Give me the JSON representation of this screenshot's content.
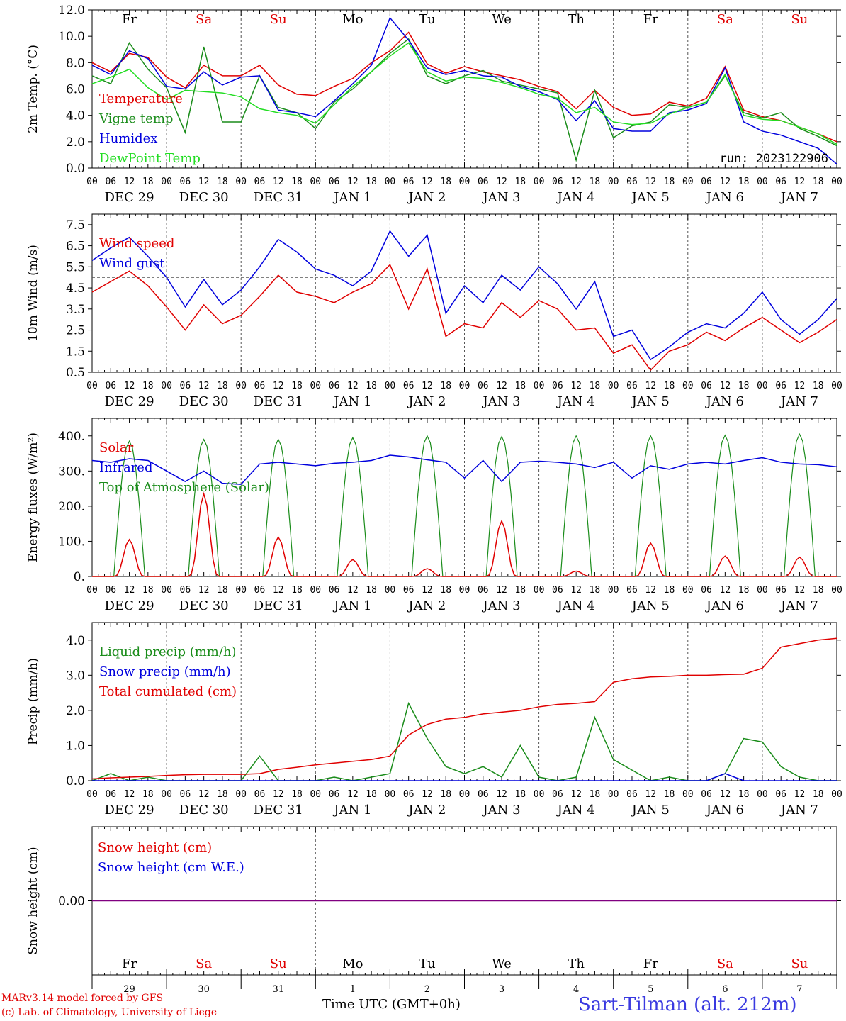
{
  "footer": {
    "model": "MARv3.14 model forced by GFS",
    "credit": "(c) Lab. of Climatology, University of Liege",
    "xlabel": "Time UTC (GMT+0h)",
    "station": "Sart-Tilman (alt. 212m)"
  },
  "colors": {
    "red": "#e00000",
    "green": "#1a8c1a",
    "blue": "#0000dd",
    "lightgreen": "#22dd22",
    "purple": "#800080"
  },
  "axis": {
    "hour_ticks": [
      "00",
      "06",
      "12",
      "18"
    ],
    "dates": [
      "DEC 29",
      "DEC 30",
      "DEC 31",
      "JAN  1",
      "JAN  2",
      "JAN  3",
      "JAN  4",
      "JAN  5",
      "JAN  6",
      "JAN  7"
    ],
    "weekdays": [
      "Fr",
      "Sa",
      "Su",
      "Mo",
      "Tu",
      "We",
      "Th",
      "Fr",
      "Sa",
      "Su"
    ],
    "weekend": [
      false,
      true,
      true,
      false,
      false,
      false,
      false,
      false,
      true,
      true
    ],
    "day_numbers": [
      "29",
      "30",
      "31",
      "1",
      "2",
      "3",
      "4",
      "5",
      "6",
      "7"
    ]
  },
  "chart_data": [
    {
      "type": "line",
      "ylabel": "2m Temp. (°C)",
      "ylim": [
        0,
        12
      ],
      "yticks": [
        "0.0",
        "2.0",
        "4.0",
        "6.0",
        "8.0",
        "10.0",
        "12.0"
      ],
      "annotation": "run: 2023122906",
      "x_days": [
        0,
        0.25,
        0.5,
        0.75,
        1,
        1.25,
        1.5,
        1.75,
        2,
        2.25,
        2.5,
        2.75,
        3,
        3.25,
        3.5,
        3.75,
        4,
        4.25,
        4.5,
        4.75,
        5,
        5.25,
        5.5,
        5.75,
        6,
        6.25,
        6.5,
        6.75,
        7,
        7.25,
        7.5,
        7.75,
        8,
        8.25,
        8.5,
        8.75,
        9,
        9.25,
        9.5,
        9.75,
        10
      ],
      "series": [
        {
          "name": "Temperature",
          "color": "red",
          "values": [
            8.0,
            7.3,
            8.7,
            8.4,
            6.9,
            6.1,
            7.8,
            7.0,
            7.0,
            7.8,
            6.3,
            5.6,
            5.5,
            6.2,
            6.8,
            8.0,
            8.9,
            10.3,
            7.9,
            7.2,
            7.7,
            7.3,
            7.0,
            6.7,
            6.2,
            5.8,
            4.5,
            5.9,
            4.6,
            4.0,
            4.1,
            5.0,
            4.7,
            5.3,
            7.7,
            4.4,
            3.9,
            3.6,
            3.1,
            2.6,
            2.0
          ]
        },
        {
          "name": "Vigne temp",
          "color": "green",
          "values": [
            7.0,
            6.4,
            9.5,
            7.5,
            6.1,
            2.7,
            9.2,
            3.5,
            3.5,
            7.0,
            4.6,
            4.2,
            3.0,
            5.0,
            6.0,
            7.3,
            8.7,
            9.8,
            7.0,
            6.4,
            7.0,
            7.4,
            6.6,
            6.3,
            6.0,
            5.7,
            0.6,
            5.9,
            2.3,
            3.2,
            3.5,
            4.8,
            4.6,
            5.0,
            7.0,
            4.2,
            3.8,
            4.2,
            3.0,
            2.4,
            1.7
          ]
        },
        {
          "name": "Humidex",
          "color": "blue",
          "values": [
            7.8,
            7.1,
            8.9,
            8.3,
            6.2,
            6.0,
            7.3,
            6.3,
            6.9,
            7.0,
            4.4,
            4.2,
            3.9,
            5.1,
            6.4,
            7.8,
            11.4,
            9.7,
            7.6,
            7.1,
            7.4,
            7.0,
            6.9,
            6.2,
            5.8,
            5.2,
            3.6,
            5.1,
            3.0,
            2.8,
            2.8,
            4.2,
            4.4,
            4.9,
            7.6,
            3.5,
            2.8,
            2.5,
            2.0,
            1.5,
            0.3
          ]
        },
        {
          "name": "DewPoint Temp",
          "color": "lightgreen",
          "values": [
            6.4,
            6.9,
            7.5,
            6.1,
            5.2,
            5.9,
            5.8,
            5.7,
            5.4,
            4.5,
            4.2,
            4.0,
            3.4,
            4.8,
            6.2,
            7.3,
            8.5,
            9.5,
            7.3,
            6.6,
            6.9,
            6.8,
            6.5,
            6.1,
            5.6,
            5.3,
            4.2,
            4.6,
            3.5,
            3.3,
            3.4,
            4.1,
            4.6,
            5.0,
            7.1,
            4.0,
            3.7,
            3.6,
            3.1,
            2.6,
            1.8
          ]
        }
      ]
    },
    {
      "type": "line",
      "ylabel": "10m Wind (m/s)",
      "ylim": [
        0.5,
        8.0
      ],
      "yticks": [
        "0.5",
        "1.5",
        "2.5",
        "3.5",
        "4.5",
        "5.5",
        "6.5",
        "7.5"
      ],
      "reference_line": 5.0,
      "x_days": [
        0,
        0.25,
        0.5,
        0.75,
        1,
        1.25,
        1.5,
        1.75,
        2,
        2.25,
        2.5,
        2.75,
        3,
        3.25,
        3.5,
        3.75,
        4,
        4.25,
        4.5,
        4.75,
        5,
        5.25,
        5.5,
        5.75,
        6,
        6.25,
        6.5,
        6.75,
        7,
        7.25,
        7.5,
        7.75,
        8,
        8.25,
        8.5,
        8.75,
        9,
        9.25,
        9.5,
        9.75,
        10
      ],
      "series": [
        {
          "name": "Wind speed",
          "color": "red",
          "values": [
            4.3,
            4.8,
            5.3,
            4.6,
            3.6,
            2.5,
            3.7,
            2.8,
            3.2,
            4.1,
            5.1,
            4.3,
            4.1,
            3.8,
            4.3,
            4.7,
            5.6,
            3.5,
            5.4,
            2.2,
            2.8,
            2.6,
            3.8,
            3.1,
            3.9,
            3.5,
            2.5,
            2.6,
            1.4,
            1.8,
            0.6,
            1.5,
            1.8,
            2.4,
            2.0,
            2.6,
            3.1,
            2.5,
            1.9,
            2.4,
            3.0
          ]
        },
        {
          "name": "Wind gust",
          "color": "blue",
          "values": [
            5.8,
            6.4,
            6.9,
            6.0,
            5.0,
            3.6,
            4.9,
            3.7,
            4.4,
            5.5,
            6.8,
            6.2,
            5.4,
            5.1,
            4.6,
            5.3,
            7.2,
            6.0,
            7.0,
            3.3,
            4.6,
            3.8,
            5.1,
            4.4,
            5.5,
            4.7,
            3.5,
            4.8,
            2.2,
            2.5,
            1.1,
            1.7,
            2.4,
            2.8,
            2.6,
            3.3,
            4.3,
            3.0,
            2.3,
            3.0,
            4.0
          ]
        }
      ]
    },
    {
      "type": "line",
      "ylabel": "Energy fluxes (W/m²)",
      "ylim": [
        0,
        450
      ],
      "yticks": [
        "0.",
        "100.",
        "200.",
        "300.",
        "400."
      ],
      "solar_peaks": [
        105,
        235,
        112,
        48,
        22,
        158,
        15,
        95,
        58,
        55
      ],
      "toa_peaks": [
        385,
        390,
        390,
        395,
        400,
        398,
        400,
        400,
        402,
        405
      ],
      "infrared_values": [
        330,
        325,
        335,
        330,
        300,
        270,
        300,
        265,
        262,
        320,
        325,
        320,
        315,
        322,
        325,
        330,
        345,
        340,
        332,
        325,
        280,
        330,
        270,
        325,
        328,
        325,
        320,
        310,
        325,
        280,
        315,
        305,
        320,
        325,
        320,
        330,
        338,
        325,
        320,
        318,
        312
      ],
      "series": [
        {
          "name": "Solar",
          "color": "red"
        },
        {
          "name": "Infrared",
          "color": "blue"
        },
        {
          "name": "Top of Atmosphere (Solar)",
          "color": "green"
        }
      ]
    },
    {
      "type": "line",
      "ylabel": "Precip (mm/h)",
      "ylim": [
        0,
        4.5
      ],
      "yticks": [
        "0.0",
        "1.0",
        "2.0",
        "3.0",
        "4.0"
      ],
      "x_days": [
        0,
        0.25,
        0.5,
        0.75,
        1,
        1.25,
        1.5,
        1.75,
        2,
        2.25,
        2.5,
        2.75,
        3,
        3.25,
        3.5,
        3.75,
        4,
        4.25,
        4.5,
        4.75,
        5,
        5.25,
        5.5,
        5.75,
        6,
        6.25,
        6.5,
        6.75,
        7,
        7.25,
        7.5,
        7.75,
        8,
        8.25,
        8.5,
        8.75,
        9,
        9.25,
        9.5,
        9.75,
        10
      ],
      "series": [
        {
          "name": "Liquid precip (mm/h)",
          "color": "green",
          "values": [
            0,
            0.2,
            0,
            0.1,
            0,
            0,
            0,
            0,
            0,
            0.7,
            0,
            0,
            0,
            0.1,
            0,
            0.1,
            0.2,
            2.2,
            1.2,
            0.4,
            0.2,
            0.4,
            0.1,
            1.0,
            0.1,
            0,
            0.1,
            1.8,
            0.6,
            0.3,
            0,
            0.1,
            0,
            0,
            0.2,
            1.2,
            1.1,
            0.4,
            0.1,
            0,
            0
          ]
        },
        {
          "name": "Snow precip (mm/h)",
          "color": "blue",
          "values": [
            0,
            0,
            0,
            0,
            0,
            0,
            0,
            0,
            0,
            0,
            0,
            0,
            0,
            0,
            0,
            0,
            0,
            0,
            0,
            0,
            0,
            0,
            0,
            0,
            0,
            0,
            0,
            0,
            0,
            0,
            0,
            0,
            0,
            0,
            0.2,
            0,
            0,
            0,
            0,
            0,
            0
          ]
        },
        {
          "name": "Total cumulated (cm)",
          "color": "red",
          "values": [
            0.05,
            0.08,
            0.1,
            0.12,
            0.15,
            0.17,
            0.18,
            0.18,
            0.18,
            0.2,
            0.32,
            0.38,
            0.45,
            0.5,
            0.55,
            0.6,
            0.7,
            1.3,
            1.6,
            1.75,
            1.8,
            1.9,
            1.95,
            2.0,
            2.1,
            2.17,
            2.2,
            2.25,
            2.8,
            2.9,
            2.95,
            2.97,
            3.0,
            3.0,
            3.02,
            3.03,
            3.2,
            3.8,
            3.9,
            4.0,
            4.05
          ]
        }
      ]
    },
    {
      "type": "line",
      "ylabel": "Snow height (cm)",
      "ylim": [
        -1,
        1
      ],
      "yticks": [
        "0.00"
      ],
      "series": [
        {
          "name": "Snow height (cm)",
          "color": "red",
          "values": [
            0,
            0
          ]
        },
        {
          "name": "Snow height (cm W.E.)",
          "color": "blue",
          "values": [
            0,
            0
          ]
        }
      ]
    }
  ]
}
